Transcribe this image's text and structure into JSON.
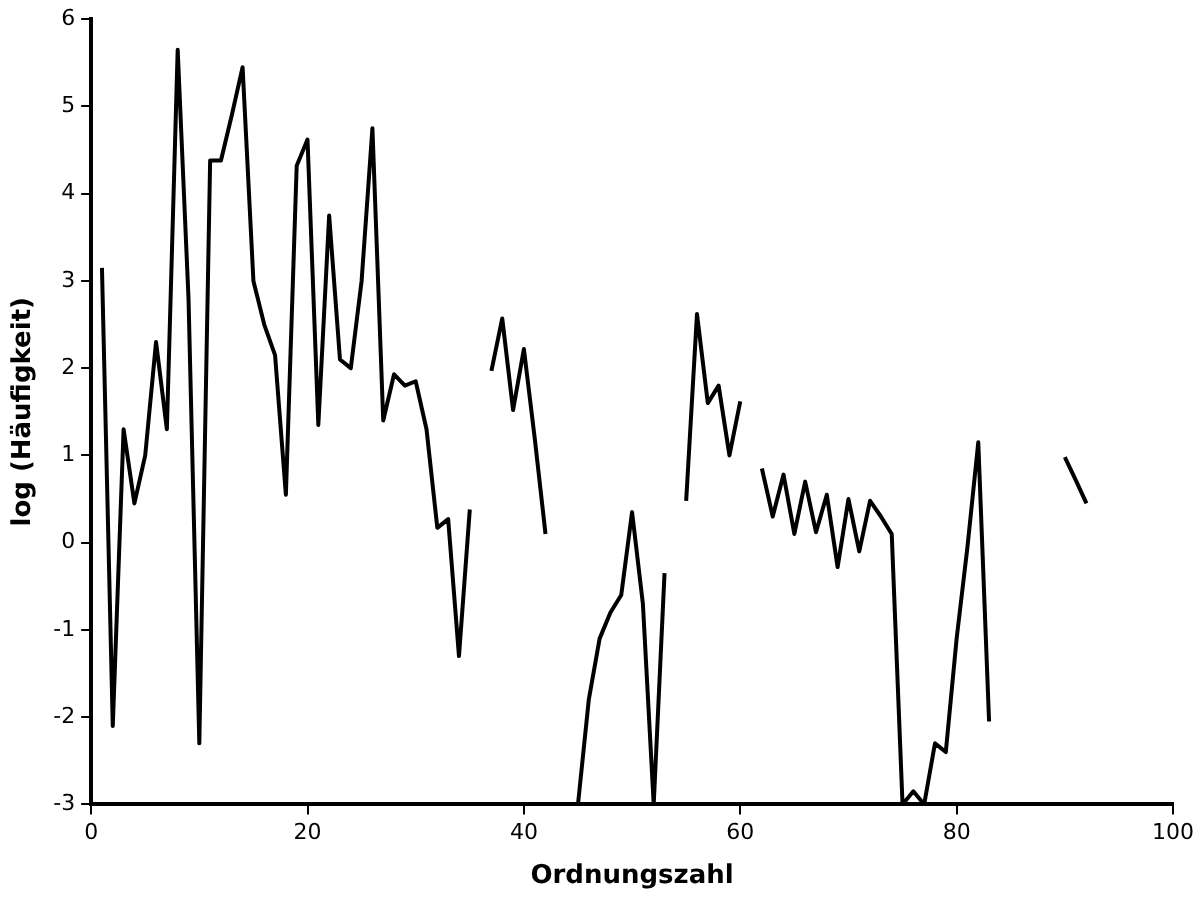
{
  "chart_data": {
    "type": "line",
    "xlabel": "Ordnungszahl",
    "ylabel": "log (Häufigkeit)",
    "x": [
      1,
      2,
      3,
      4,
      5,
      6,
      7,
      8,
      9,
      10,
      11,
      12,
      13,
      14,
      15,
      16,
      17,
      18,
      19,
      20,
      21,
      22,
      23,
      24,
      25,
      26,
      27,
      28,
      29,
      30,
      31,
      32,
      33,
      34,
      35,
      36,
      37,
      38,
      39,
      40,
      41,
      42,
      43,
      44,
      45,
      46,
      47,
      48,
      49,
      50,
      51,
      52,
      53,
      54,
      55,
      56,
      57,
      58,
      59,
      60,
      61,
      62,
      63,
      64,
      65,
      66,
      67,
      68,
      69,
      70,
      71,
      72,
      73,
      74,
      75,
      76,
      77,
      78,
      79,
      80,
      81,
      82,
      83,
      84,
      85,
      86,
      87,
      88,
      89,
      90,
      91,
      92
    ],
    "series": [
      {
        "color": "#000000",
        "values": [
          3.15,
          -2.1,
          1.3,
          0.45,
          1.0,
          2.3,
          1.3,
          5.65,
          2.8,
          -2.3,
          4.38,
          4.38,
          4.9,
          5.45,
          3.0,
          2.5,
          2.15,
          0.55,
          4.32,
          4.62,
          1.35,
          3.75,
          2.1,
          2.0,
          3.0,
          4.75,
          1.4,
          1.93,
          1.8,
          1.85,
          1.3,
          0.17,
          0.27,
          -1.3,
          0.38,
          null,
          1.97,
          2.57,
          1.52,
          2.22,
          1.2,
          0.1,
          null,
          null,
          -3.0,
          -1.8,
          -1.1,
          -0.8,
          -0.6,
          0.35,
          -0.7,
          -3.0,
          -0.35,
          null,
          0.48,
          2.62,
          1.6,
          1.8,
          1.0,
          1.62,
          null,
          0.85,
          0.3,
          0.78,
          0.1,
          0.7,
          0.12,
          0.55,
          -0.28,
          0.5,
          -0.1,
          0.48,
          0.3,
          0.1,
          -3.0,
          -2.85,
          -3.0,
          -2.3,
          -2.4,
          -1.1,
          -0.05,
          1.15,
          -2.05,
          null,
          null,
          null,
          null,
          null,
          null,
          0.98,
          0.72,
          0.45
        ]
      }
    ],
    "xlim": [
      0,
      100
    ],
    "xticks": [
      0,
      20,
      40,
      60,
      80,
      100
    ],
    "ylim": [
      -3,
      6
    ],
    "yticks": [
      -3,
      -2,
      -1,
      0,
      1,
      2,
      3,
      4,
      5,
      6
    ],
    "grid": false,
    "legend": false,
    "marker": "none",
    "line_style": "solid"
  }
}
